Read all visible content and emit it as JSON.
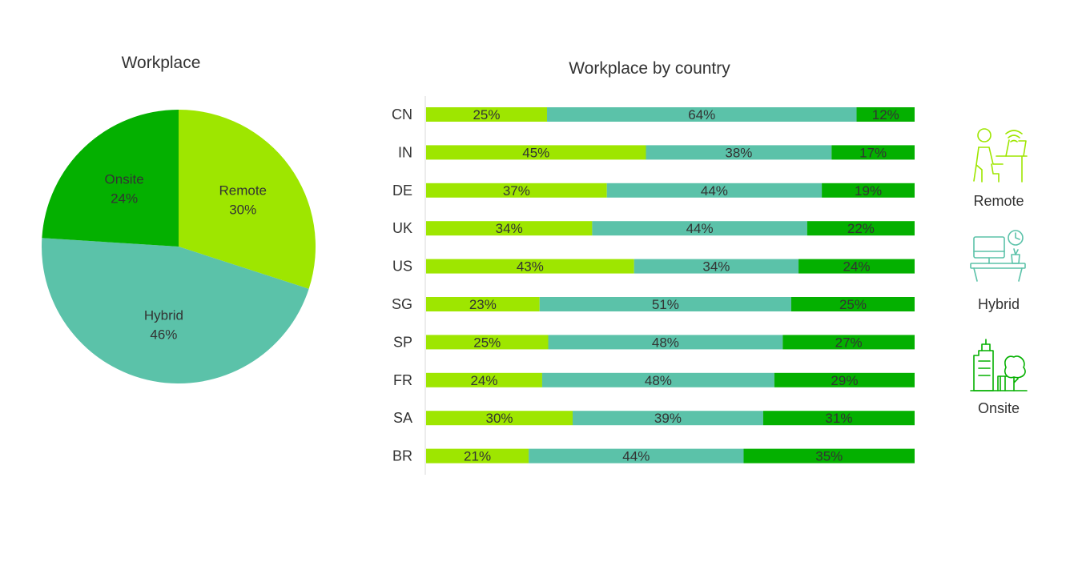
{
  "colors": {
    "remote": "#9EE600",
    "hybrid": "#5BC2A9",
    "onsite": "#04B000"
  },
  "legend": [
    {
      "key": "remote",
      "label": "Remote",
      "icon": "remote-worker-icon"
    },
    {
      "key": "hybrid",
      "label": "Hybrid",
      "icon": "hybrid-desk-icon"
    },
    {
      "key": "onsite",
      "label": "Onsite",
      "icon": "onsite-office-icon"
    }
  ],
  "chart_data": [
    {
      "type": "pie",
      "title": "Workplace",
      "slices": [
        {
          "name": "Remote",
          "value": 30,
          "label": "30%"
        },
        {
          "name": "Hybrid",
          "value": 46,
          "label": "46%"
        },
        {
          "name": "Onsite",
          "value": 24,
          "label": "24%"
        }
      ]
    },
    {
      "type": "bar",
      "orientation": "horizontal",
      "stacked": true,
      "title": "Workplace by country",
      "categories": [
        "CN",
        "IN",
        "DE",
        "UK",
        "US",
        "SG",
        "SP",
        "FR",
        "SA",
        "BR"
      ],
      "series": [
        {
          "name": "Remote",
          "values": [
            25,
            45,
            37,
            34,
            43,
            23,
            25,
            24,
            30,
            21
          ]
        },
        {
          "name": "Hybrid",
          "values": [
            64,
            38,
            44,
            44,
            34,
            51,
            48,
            48,
            39,
            44
          ]
        },
        {
          "name": "Onsite",
          "values": [
            12,
            17,
            19,
            22,
            24,
            25,
            27,
            29,
            31,
            35
          ]
        }
      ],
      "legend_position": "right"
    }
  ]
}
